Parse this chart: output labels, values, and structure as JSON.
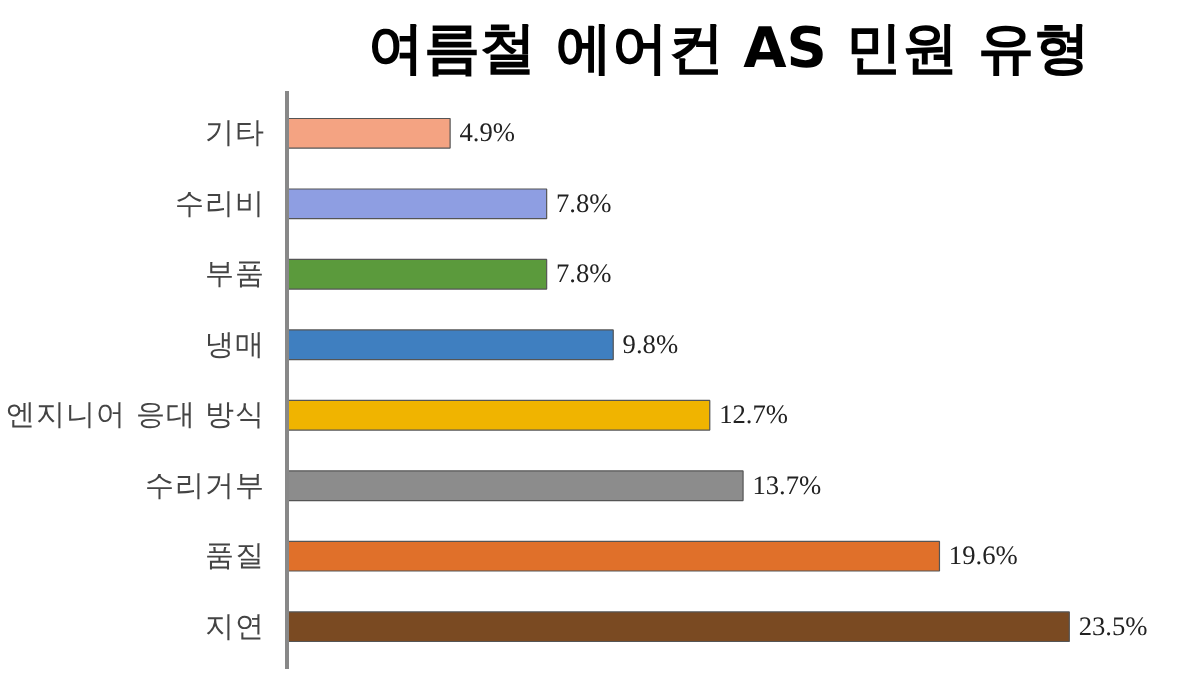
{
  "chart_data": {
    "type": "bar",
    "orientation": "horizontal",
    "title": "여름철 에어컨 AS 민원 유형",
    "categories": [
      "기타",
      "수리비",
      "부품",
      "냉매",
      "엔지니어 응대 방식",
      "수리거부",
      "품질",
      "지연"
    ],
    "values": [
      4.9,
      7.8,
      7.8,
      9.8,
      12.7,
      13.7,
      19.6,
      23.5
    ],
    "colors": [
      "#f4a382",
      "#8e9ee2",
      "#5b9a3c",
      "#3f7fc0",
      "#f0b400",
      "#8c8c8c",
      "#e0702a",
      "#7a4a22"
    ],
    "value_labels": [
      "4.9%",
      "7.8%",
      "7.8%",
      "9.8%",
      "12.7%",
      "13.7%",
      "19.6%",
      "23.5%"
    ],
    "grid": false
  }
}
